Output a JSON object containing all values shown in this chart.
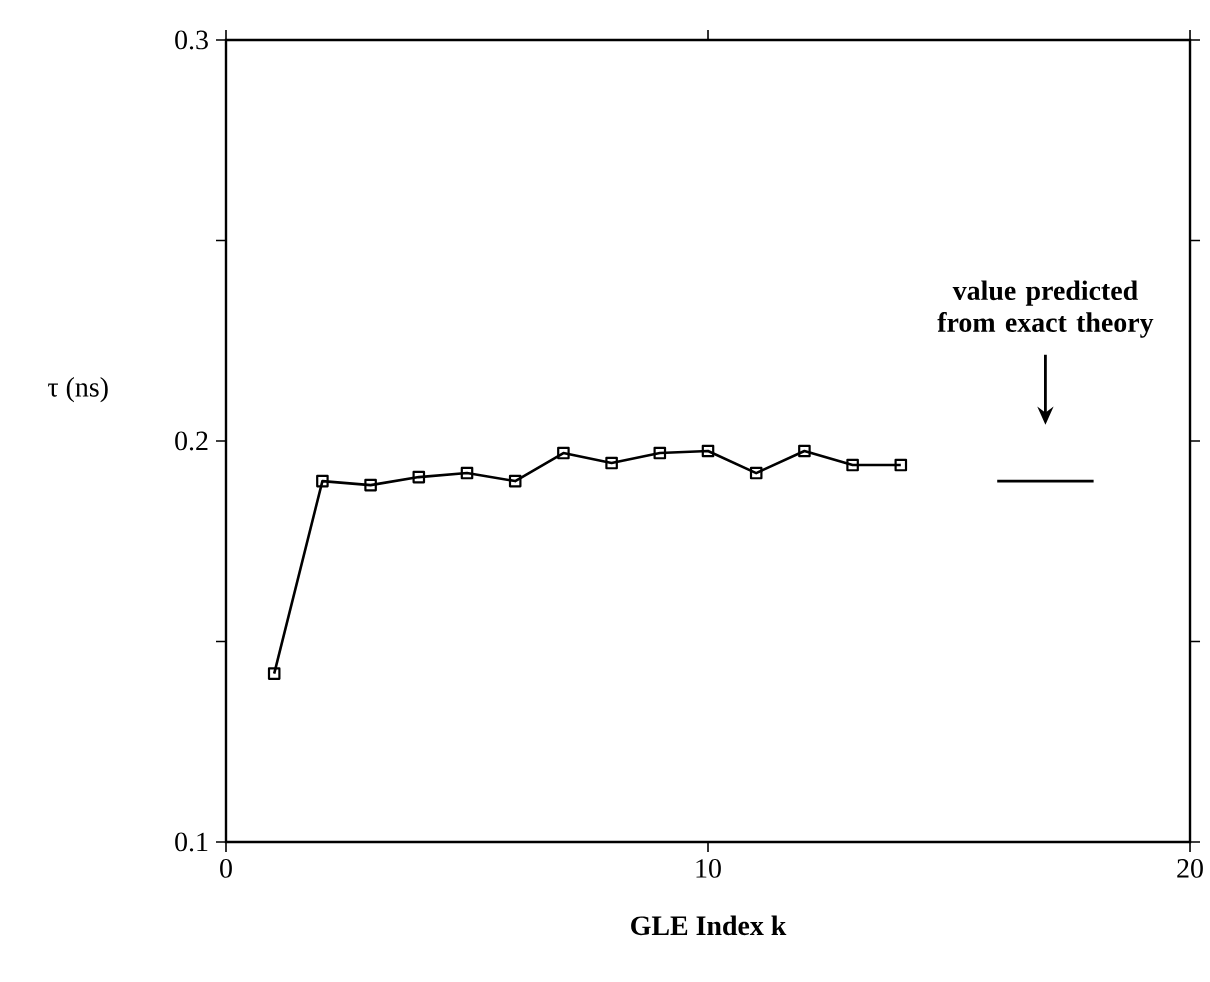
{
  "chart_data": {
    "type": "line",
    "xlabel": "GLE Index k",
    "ylabel": "τ (ns)",
    "xlim": [
      0,
      20
    ],
    "ylim": [
      0.1,
      0.3
    ],
    "xticks": [
      0,
      10,
      20
    ],
    "yticks": [
      0.1,
      {
        "value": 0.15,
        "label": null
      },
      0.2,
      {
        "value": 0.25,
        "label": null
      },
      0.3
    ],
    "marker": "square",
    "line_style": "solid",
    "grid": false,
    "series": [
      {
        "color": "#000000",
        "x": [
          1,
          2,
          3,
          4,
          5,
          6,
          7,
          8,
          9,
          10,
          11,
          12,
          13,
          14
        ],
        "values": [
          0.142,
          0.19,
          0.189,
          0.191,
          0.192,
          0.19,
          0.197,
          0.1945,
          0.197,
          0.1975,
          0.192,
          0.1975,
          0.194,
          0.194
        ]
      },
      {
        "color": "#000000",
        "marker": "none",
        "x": [
          16,
          18
        ],
        "values": [
          0.19,
          0.19
        ]
      }
    ],
    "annotations": [
      "value predicted from exact theory"
    ]
  }
}
